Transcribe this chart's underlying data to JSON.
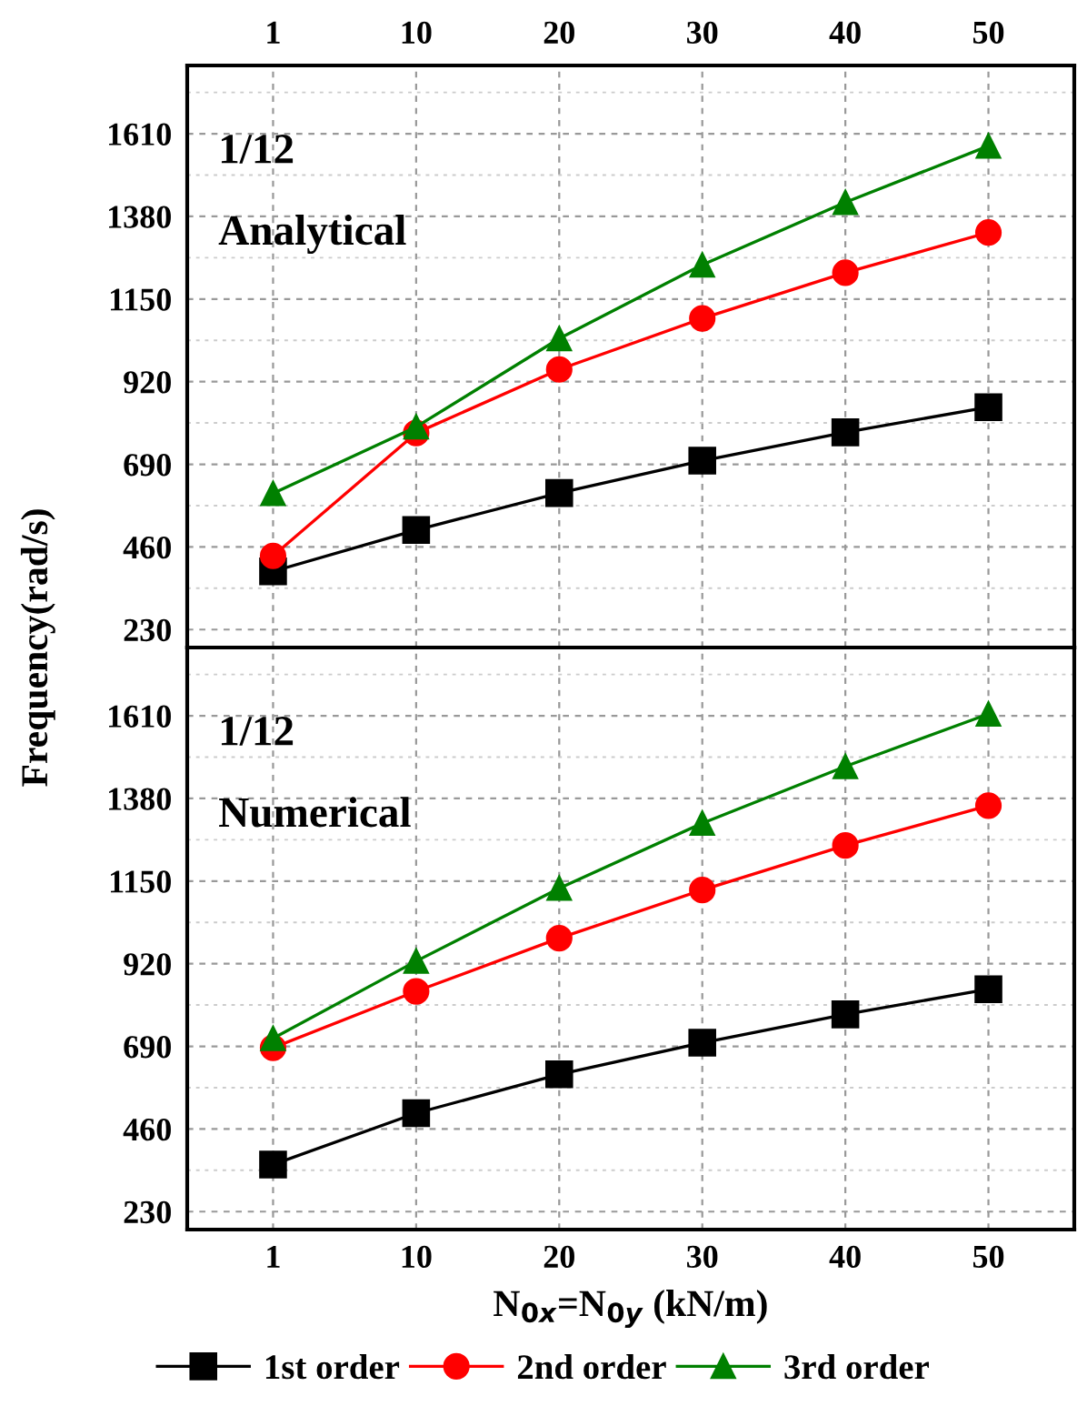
{
  "chart_data": [
    {
      "type": "line",
      "annotations": [
        "1/12",
        "Analytical"
      ],
      "ylabel": "Frequency(rad/s)",
      "categories": [
        "1",
        "10",
        "20",
        "30",
        "40",
        "50"
      ],
      "ylim": [
        180,
        1800
      ],
      "yticks": [
        230,
        460,
        690,
        920,
        1150,
        1380,
        1610
      ],
      "grid": true,
      "line_style": "solid",
      "series": [
        {
          "color": "#000000",
          "marker": "square",
          "values": [
            392,
            507,
            610,
            700,
            779,
            849
          ]
        },
        {
          "color": "#ff0000",
          "marker": "circle",
          "values": [
            435,
            777,
            954,
            1096,
            1223,
            1335
          ]
        },
        {
          "color": "#008000",
          "marker": "triangle",
          "values": [
            609,
            794,
            1040,
            1245,
            1419,
            1576
          ]
        }
      ]
    },
    {
      "type": "line",
      "annotations": [
        "1/12",
        "Numerical"
      ],
      "xlabel": "N$_{0x}$=N$_{0y}$ (kN/m)",
      "categories": [
        "1",
        "10",
        "20",
        "30",
        "40",
        "50"
      ],
      "ylim": [
        180,
        1800
      ],
      "yticks": [
        230,
        460,
        690,
        920,
        1150,
        1380,
        1610
      ],
      "grid": true,
      "legend": "bottom",
      "line_style": "solid",
      "series": [
        {
          "name": "1st order",
          "color": "#000000",
          "marker": "square",
          "values": [
            361,
            504,
            612,
            700,
            779,
            849
          ]
        },
        {
          "name": "2nd order",
          "color": "#ff0000",
          "marker": "circle",
          "values": [
            686,
            843,
            991,
            1125,
            1249,
            1360
          ]
        },
        {
          "name": "3rd order",
          "color": "#008000",
          "marker": "triangle",
          "values": [
            712,
            927,
            1130,
            1311,
            1469,
            1615
          ]
        }
      ]
    }
  ]
}
